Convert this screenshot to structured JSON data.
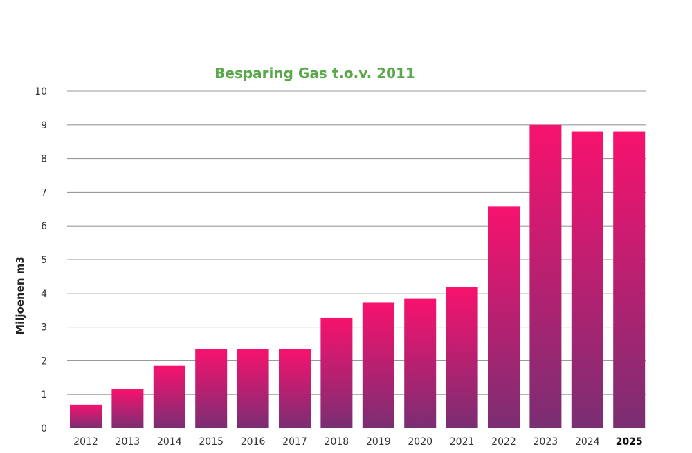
{
  "chart_data": {
    "type": "bar",
    "title": "Besparing Gas t.o.v. 2011",
    "xlabel": "",
    "ylabel": "Miljoenen m3",
    "ylim": [
      0,
      10
    ],
    "yticks": [
      0,
      1,
      2,
      3,
      4,
      5,
      6,
      7,
      8,
      9,
      10
    ],
    "grid": true,
    "categories": [
      "2012",
      "2013",
      "2014",
      "2015",
      "2016",
      "2017",
      "2018",
      "2019",
      "2020",
      "2021",
      "2022",
      "2023",
      "2024",
      "2025"
    ],
    "values": [
      0.7,
      1.15,
      1.85,
      2.35,
      2.35,
      2.35,
      3.28,
      3.72,
      3.84,
      4.18,
      6.57,
      9.0,
      8.8,
      8.8
    ],
    "bold_categories": [
      "2025"
    ],
    "colors": {
      "title": "#5aa84a",
      "bar_top": "#f7126e",
      "bar_bottom": "#7a2e73",
      "grid": "#9a9a9a"
    }
  }
}
